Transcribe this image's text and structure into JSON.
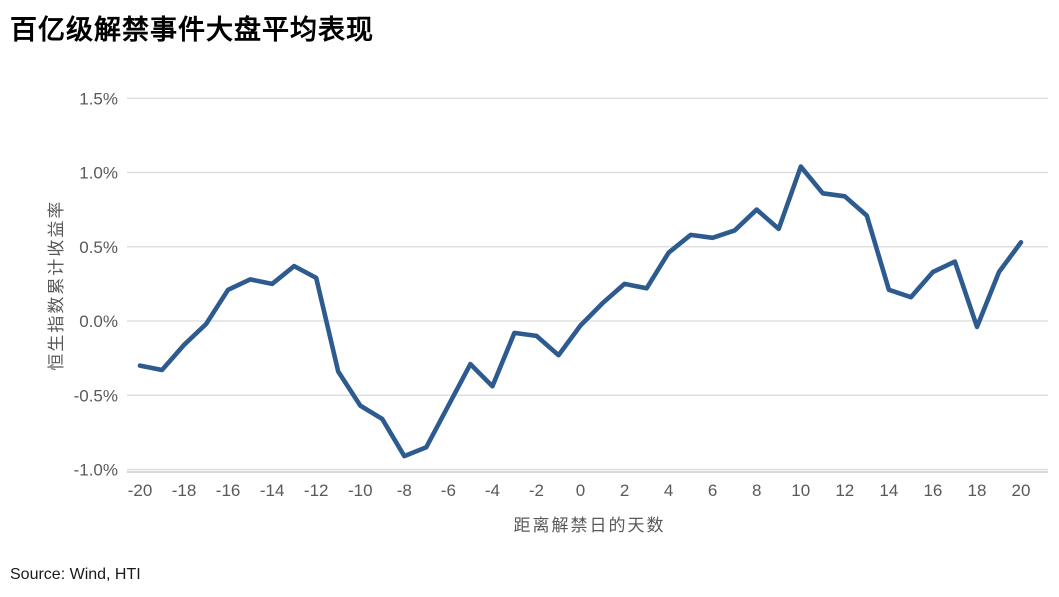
{
  "title": "百亿级解禁事件大盘平均表现",
  "source": "Source: Wind, HTI",
  "chart_data": {
    "type": "line",
    "title": "百亿级解禁事件大盘平均表现",
    "xlabel": "距离解禁日的天数",
    "ylabel": "恒生指数累计收益率",
    "legend": [],
    "grid": "horizontal",
    "line_color": "#2E5B8F",
    "grid_color": "#D9D9D9",
    "axis_color": "#BFBFBF",
    "tick_color": "#595959",
    "ylim": [
      -1.0,
      1.5
    ],
    "ytick_values": [
      1.5,
      1.0,
      0.5,
      0.0,
      -0.5,
      -1.0
    ],
    "ytick_labels": [
      "1.5%",
      "1.0%",
      "0.5%",
      "0.0%",
      "-0.5%",
      "-1.0%"
    ],
    "xtick_values": [
      -20,
      -18,
      -16,
      -14,
      -12,
      -10,
      -8,
      -6,
      -4,
      -2,
      0,
      2,
      4,
      6,
      8,
      10,
      12,
      14,
      16,
      18,
      20
    ],
    "xtick_labels": [
      "-20",
      "-18",
      "-16",
      "-14",
      "-12",
      "-10",
      "-8",
      "-6",
      "-4",
      "-2",
      "0",
      "2",
      "4",
      "6",
      "8",
      "10",
      "12",
      "14",
      "16",
      "18",
      "20"
    ],
    "x": [
      -20,
      -19,
      -18,
      -17,
      -16,
      -15,
      -14,
      -13,
      -12,
      -11,
      -10,
      -9,
      -8,
      -7,
      -6,
      -5,
      -4,
      -3,
      -2,
      -1,
      0,
      1,
      2,
      3,
      4,
      5,
      6,
      7,
      8,
      9,
      10,
      11,
      12,
      13,
      14,
      15,
      16,
      17,
      18,
      19,
      20
    ],
    "series": [
      {
        "name": "恒生指数累计收益率",
        "unit": "%",
        "values": [
          -0.3,
          -0.33,
          -0.16,
          -0.02,
          0.21,
          0.28,
          0.25,
          0.37,
          0.29,
          -0.34,
          -0.57,
          -0.66,
          -0.91,
          -0.85,
          -0.57,
          -0.29,
          -0.44,
          -0.08,
          -0.1,
          -0.23,
          -0.03,
          0.12,
          0.25,
          0.22,
          0.46,
          0.58,
          0.56,
          0.61,
          0.75,
          0.62,
          1.04,
          0.86,
          0.84,
          0.71,
          0.21,
          0.16,
          0.33,
          0.4,
          -0.04,
          0.33,
          0.53
        ]
      }
    ]
  }
}
